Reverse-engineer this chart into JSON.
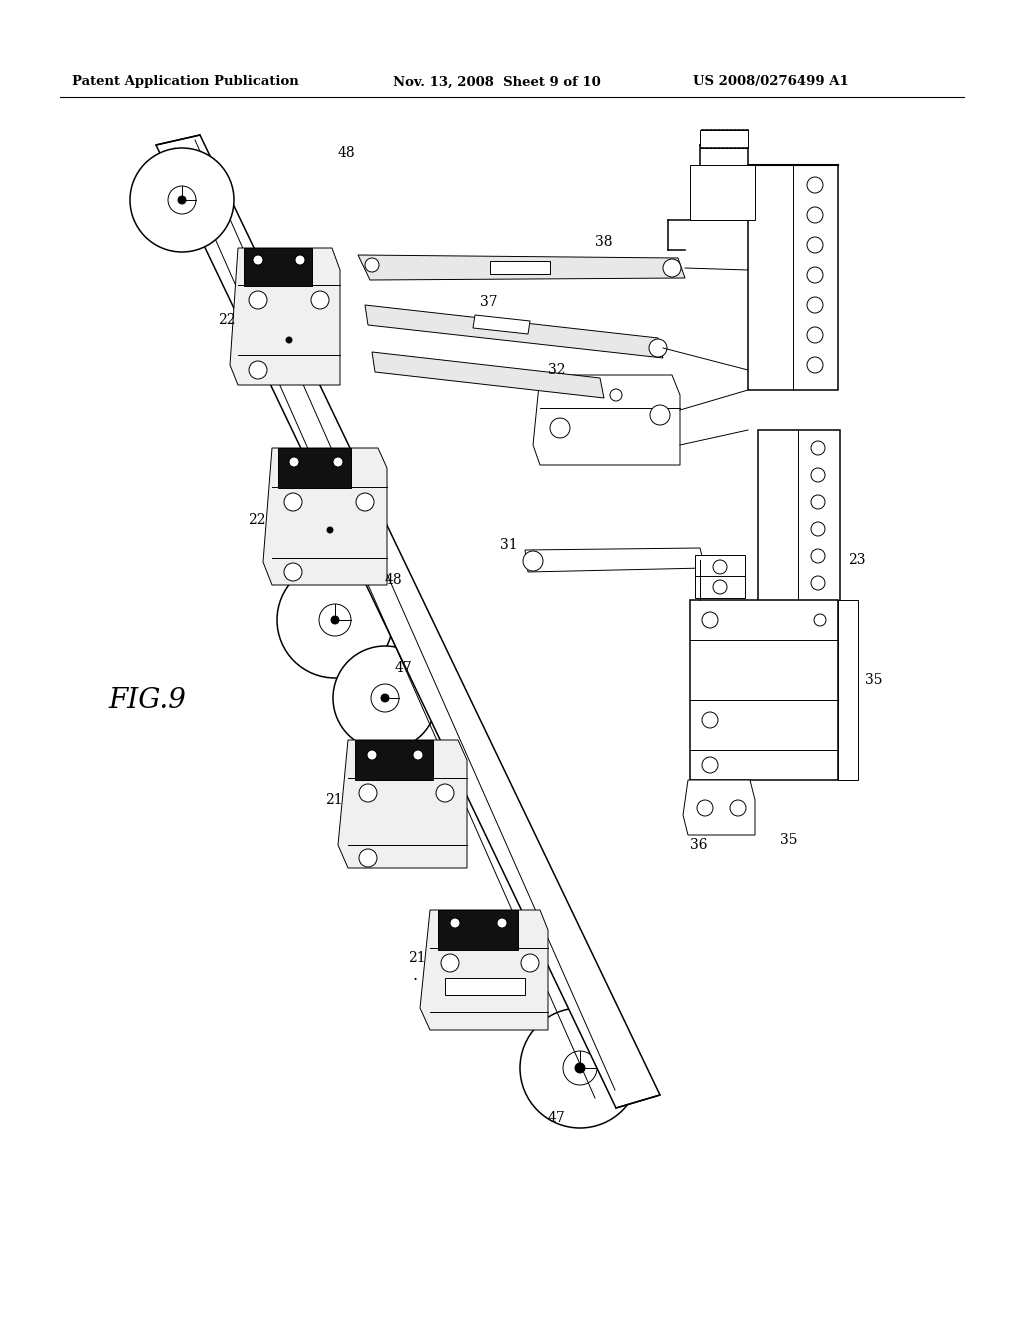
{
  "background_color": "#ffffff",
  "header_left": "Patent Application Publication",
  "header_middle": "Nov. 13, 2008  Sheet 9 of 10",
  "header_right": "US 2008/0276499 A1",
  "line_color": "#000000",
  "fig_label": "FIG.9"
}
